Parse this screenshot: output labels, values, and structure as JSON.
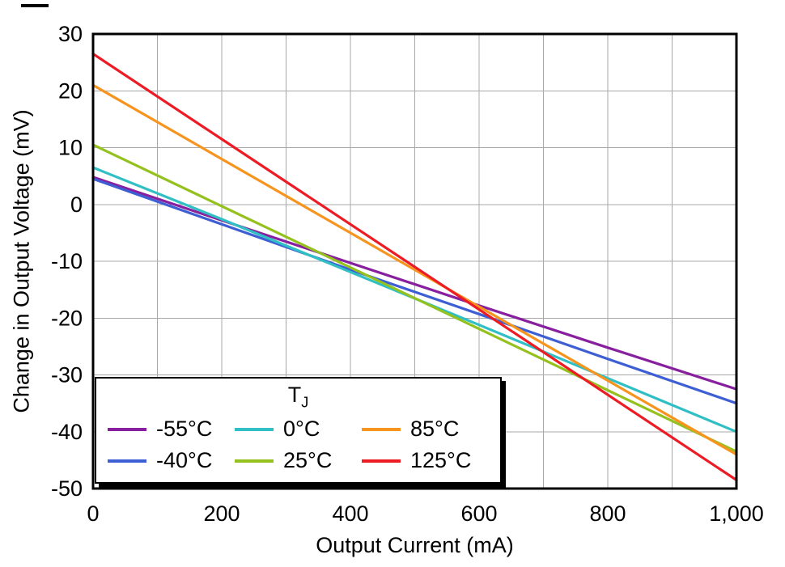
{
  "figure": {
    "background": "#FFFFFF"
  },
  "chart_data": {
    "type": "line",
    "title": "",
    "xlabel": "Output Current (mA)",
    "ylabel": "Change in Output Voltage (mV)",
    "xlim": [
      0,
      1000
    ],
    "ylim": [
      -50,
      30
    ],
    "x": [
      0,
      200,
      400,
      600,
      800,
      1000
    ],
    "xticks": {
      "values": [
        0,
        200,
        400,
        600,
        800,
        1000
      ],
      "labels": [
        "0",
        "200",
        "400",
        "600",
        "800",
        "1,000"
      ]
    },
    "yticks": {
      "values": [
        30,
        20,
        10,
        0,
        -10,
        -20,
        -30,
        -40,
        -50
      ],
      "labels": [
        "30",
        "20",
        "10",
        "0",
        "-10",
        "-20",
        "-30",
        "-40",
        "-50"
      ]
    },
    "grid": {
      "on": true,
      "x_step": 100,
      "y_step": 10,
      "color": "#A8A8A8"
    },
    "frame_color": "#000000",
    "legend": {
      "position": "lower-left",
      "title_main": "T",
      "title_sub": "J"
    },
    "series": [
      {
        "name": "-55°C",
        "color": "#871F9F",
        "values": [
          4.8,
          -2.8,
          -10.3,
          -17.8,
          -25.2,
          -32.5
        ]
      },
      {
        "name": "-40°C",
        "color": "#3D5FD3",
        "values": [
          4.5,
          -3.5,
          -11.5,
          -19.3,
          -27.2,
          -35.0
        ]
      },
      {
        "name": "0°C",
        "color": "#2FBFC4",
        "values": [
          6.5,
          -2.6,
          -11.9,
          -21.2,
          -30.6,
          -40.0
        ]
      },
      {
        "name": "25°C",
        "color": "#95C11F",
        "values": [
          10.5,
          -0.3,
          -11.1,
          -21.9,
          -32.7,
          -43.5
        ]
      },
      {
        "name": "85°C",
        "color": "#F7941E",
        "values": [
          21.0,
          8.0,
          -5.0,
          -18.0,
          -31.0,
          -44.0
        ]
      },
      {
        "name": "125°C",
        "color": "#ED1C24",
        "values": [
          26.5,
          11.5,
          -3.5,
          -18.5,
          -33.5,
          -48.5
        ]
      }
    ]
  }
}
